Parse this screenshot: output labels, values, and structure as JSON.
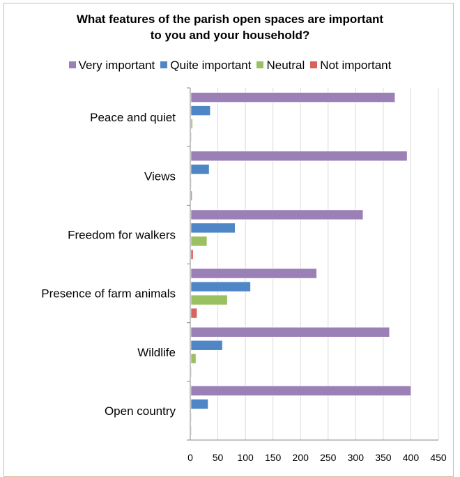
{
  "chart_data": {
    "type": "bar",
    "orientation": "horizontal",
    "title_lines": [
      "What features of the parish open spaces are important",
      "to you and your household?"
    ],
    "categories": [
      "Peace and quiet",
      "Views",
      "Freedom for walkers",
      "Presence of farm animals",
      "Wildlife",
      "Open country"
    ],
    "series": [
      {
        "name": "Very important",
        "color": "#9b7fb7",
        "values": [
          370,
          392,
          312,
          228,
          360,
          399
        ]
      },
      {
        "name": "Quite important",
        "color": "#4f86c6",
        "values": [
          35,
          33,
          80,
          108,
          57,
          31
        ]
      },
      {
        "name": "Neutral",
        "color": "#9bc062",
        "values": [
          3,
          1,
          29,
          66,
          9,
          1
        ]
      },
      {
        "name": "Not important",
        "color": "#d9615e",
        "values": [
          1,
          2,
          4,
          11,
          1,
          1
        ]
      }
    ],
    "xlim": [
      0,
      450
    ],
    "xticks": [
      0,
      50,
      100,
      150,
      200,
      250,
      300,
      350,
      400,
      450
    ],
    "grid": true,
    "legend_position": "top"
  }
}
